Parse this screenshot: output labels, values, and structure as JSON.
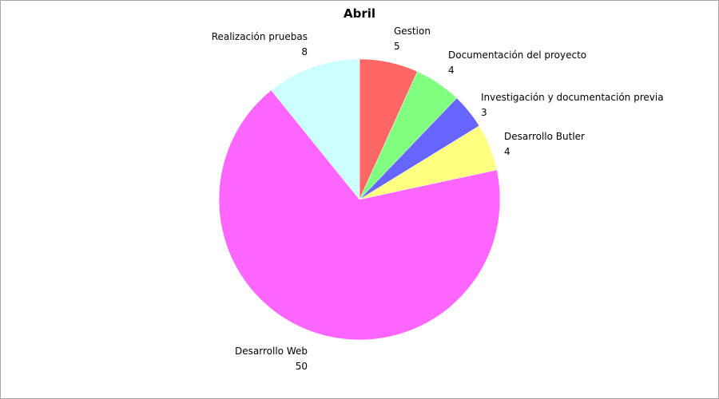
{
  "chart_data": {
    "type": "pie",
    "title": "Abril",
    "categories": [
      "Gestion",
      "Documentación del proyecto",
      "Investigación y documentación previa",
      "Desarrollo Butler",
      "Desarrollo Web",
      "Realización pruebas"
    ],
    "values": [
      5,
      4,
      3,
      4,
      50,
      8
    ],
    "colors": [
      "#ff6666",
      "#80ff80",
      "#6666ff",
      "#ffff80",
      "#ff66ff",
      "#ccffff"
    ],
    "legend": "none",
    "data_labels": "category name and value, outside slices"
  }
}
